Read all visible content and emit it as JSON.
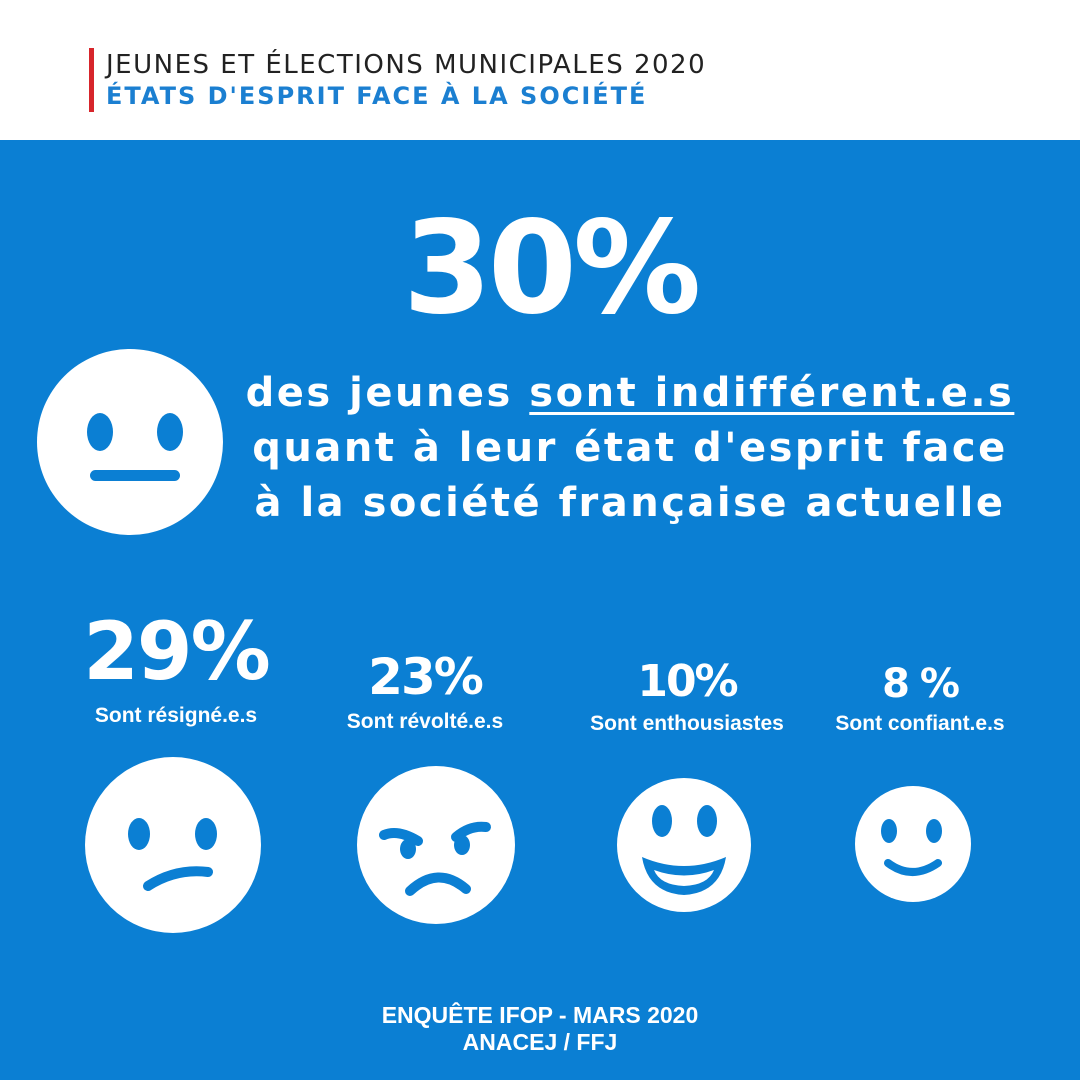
{
  "header": {
    "title": "JEUNES ET ÉLECTIONS MUNICIPALES 2020",
    "subtitle": "ÉTATS D'ESPRIT FACE À LA SOCIÉTÉ",
    "accent_color": "#d7252b",
    "subtitle_color": "#1b7fd1"
  },
  "panel": {
    "background_color": "#0b7fd3"
  },
  "headline": {
    "percent": "30%",
    "text_before": "des jeunes ",
    "text_highlight": "sont indifférent.e.s",
    "line2": "quant à leur état d'esprit face",
    "line3": "à la société française actuelle",
    "icon": "neutral-face-icon"
  },
  "stats": [
    {
      "value": "29%",
      "label": "Sont résigné.e.s",
      "icon": "confused-face-icon"
    },
    {
      "value": "23%",
      "label": "Sont révolté.e.s",
      "icon": "angry-face-icon"
    },
    {
      "value": "10%",
      "label": "Sont enthousiastes",
      "icon": "grinning-face-icon"
    },
    {
      "value": "8 %",
      "label": "Sont confiant.e.s",
      "icon": "smiling-face-icon"
    }
  ],
  "footer": {
    "line1": "ENQUÊTE IFOP - MARS 2020",
    "line2": "ANACEJ / FFJ"
  }
}
